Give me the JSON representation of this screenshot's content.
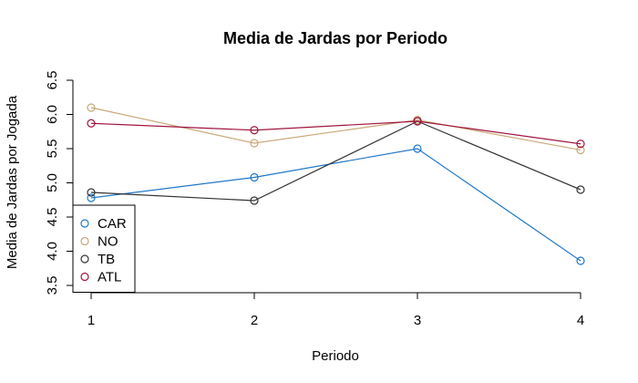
{
  "chart_data": {
    "type": "line",
    "title": "Media de Jardas por Periodo",
    "xlabel": "Periodo",
    "ylabel": "Media de Jardas por Jogada",
    "x": [
      1,
      2,
      3,
      4
    ],
    "xticks": [
      "1",
      "2",
      "3",
      "4"
    ],
    "yticks": [
      "3.5",
      "4.0",
      "4.5",
      "5.0",
      "5.5",
      "6.0",
      "6.5"
    ],
    "xlim": [
      1,
      4
    ],
    "ylim": [
      3.5,
      6.5
    ],
    "grid": false,
    "legend_position": "bottom-left",
    "marker": "open-circle",
    "series": [
      {
        "name": "CAR",
        "color": "#1f78c8",
        "values": [
          4.78,
          5.08,
          5.5,
          3.86
        ]
      },
      {
        "name": "NO",
        "color": "#c8a878",
        "values": [
          6.1,
          5.58,
          5.92,
          5.48
        ]
      },
      {
        "name": "TB",
        "color": "#333333",
        "values": [
          4.86,
          4.74,
          5.9,
          4.9
        ]
      },
      {
        "name": "ATL",
        "color": "#a0153e",
        "values": [
          5.87,
          5.77,
          5.9,
          5.57
        ]
      }
    ]
  }
}
